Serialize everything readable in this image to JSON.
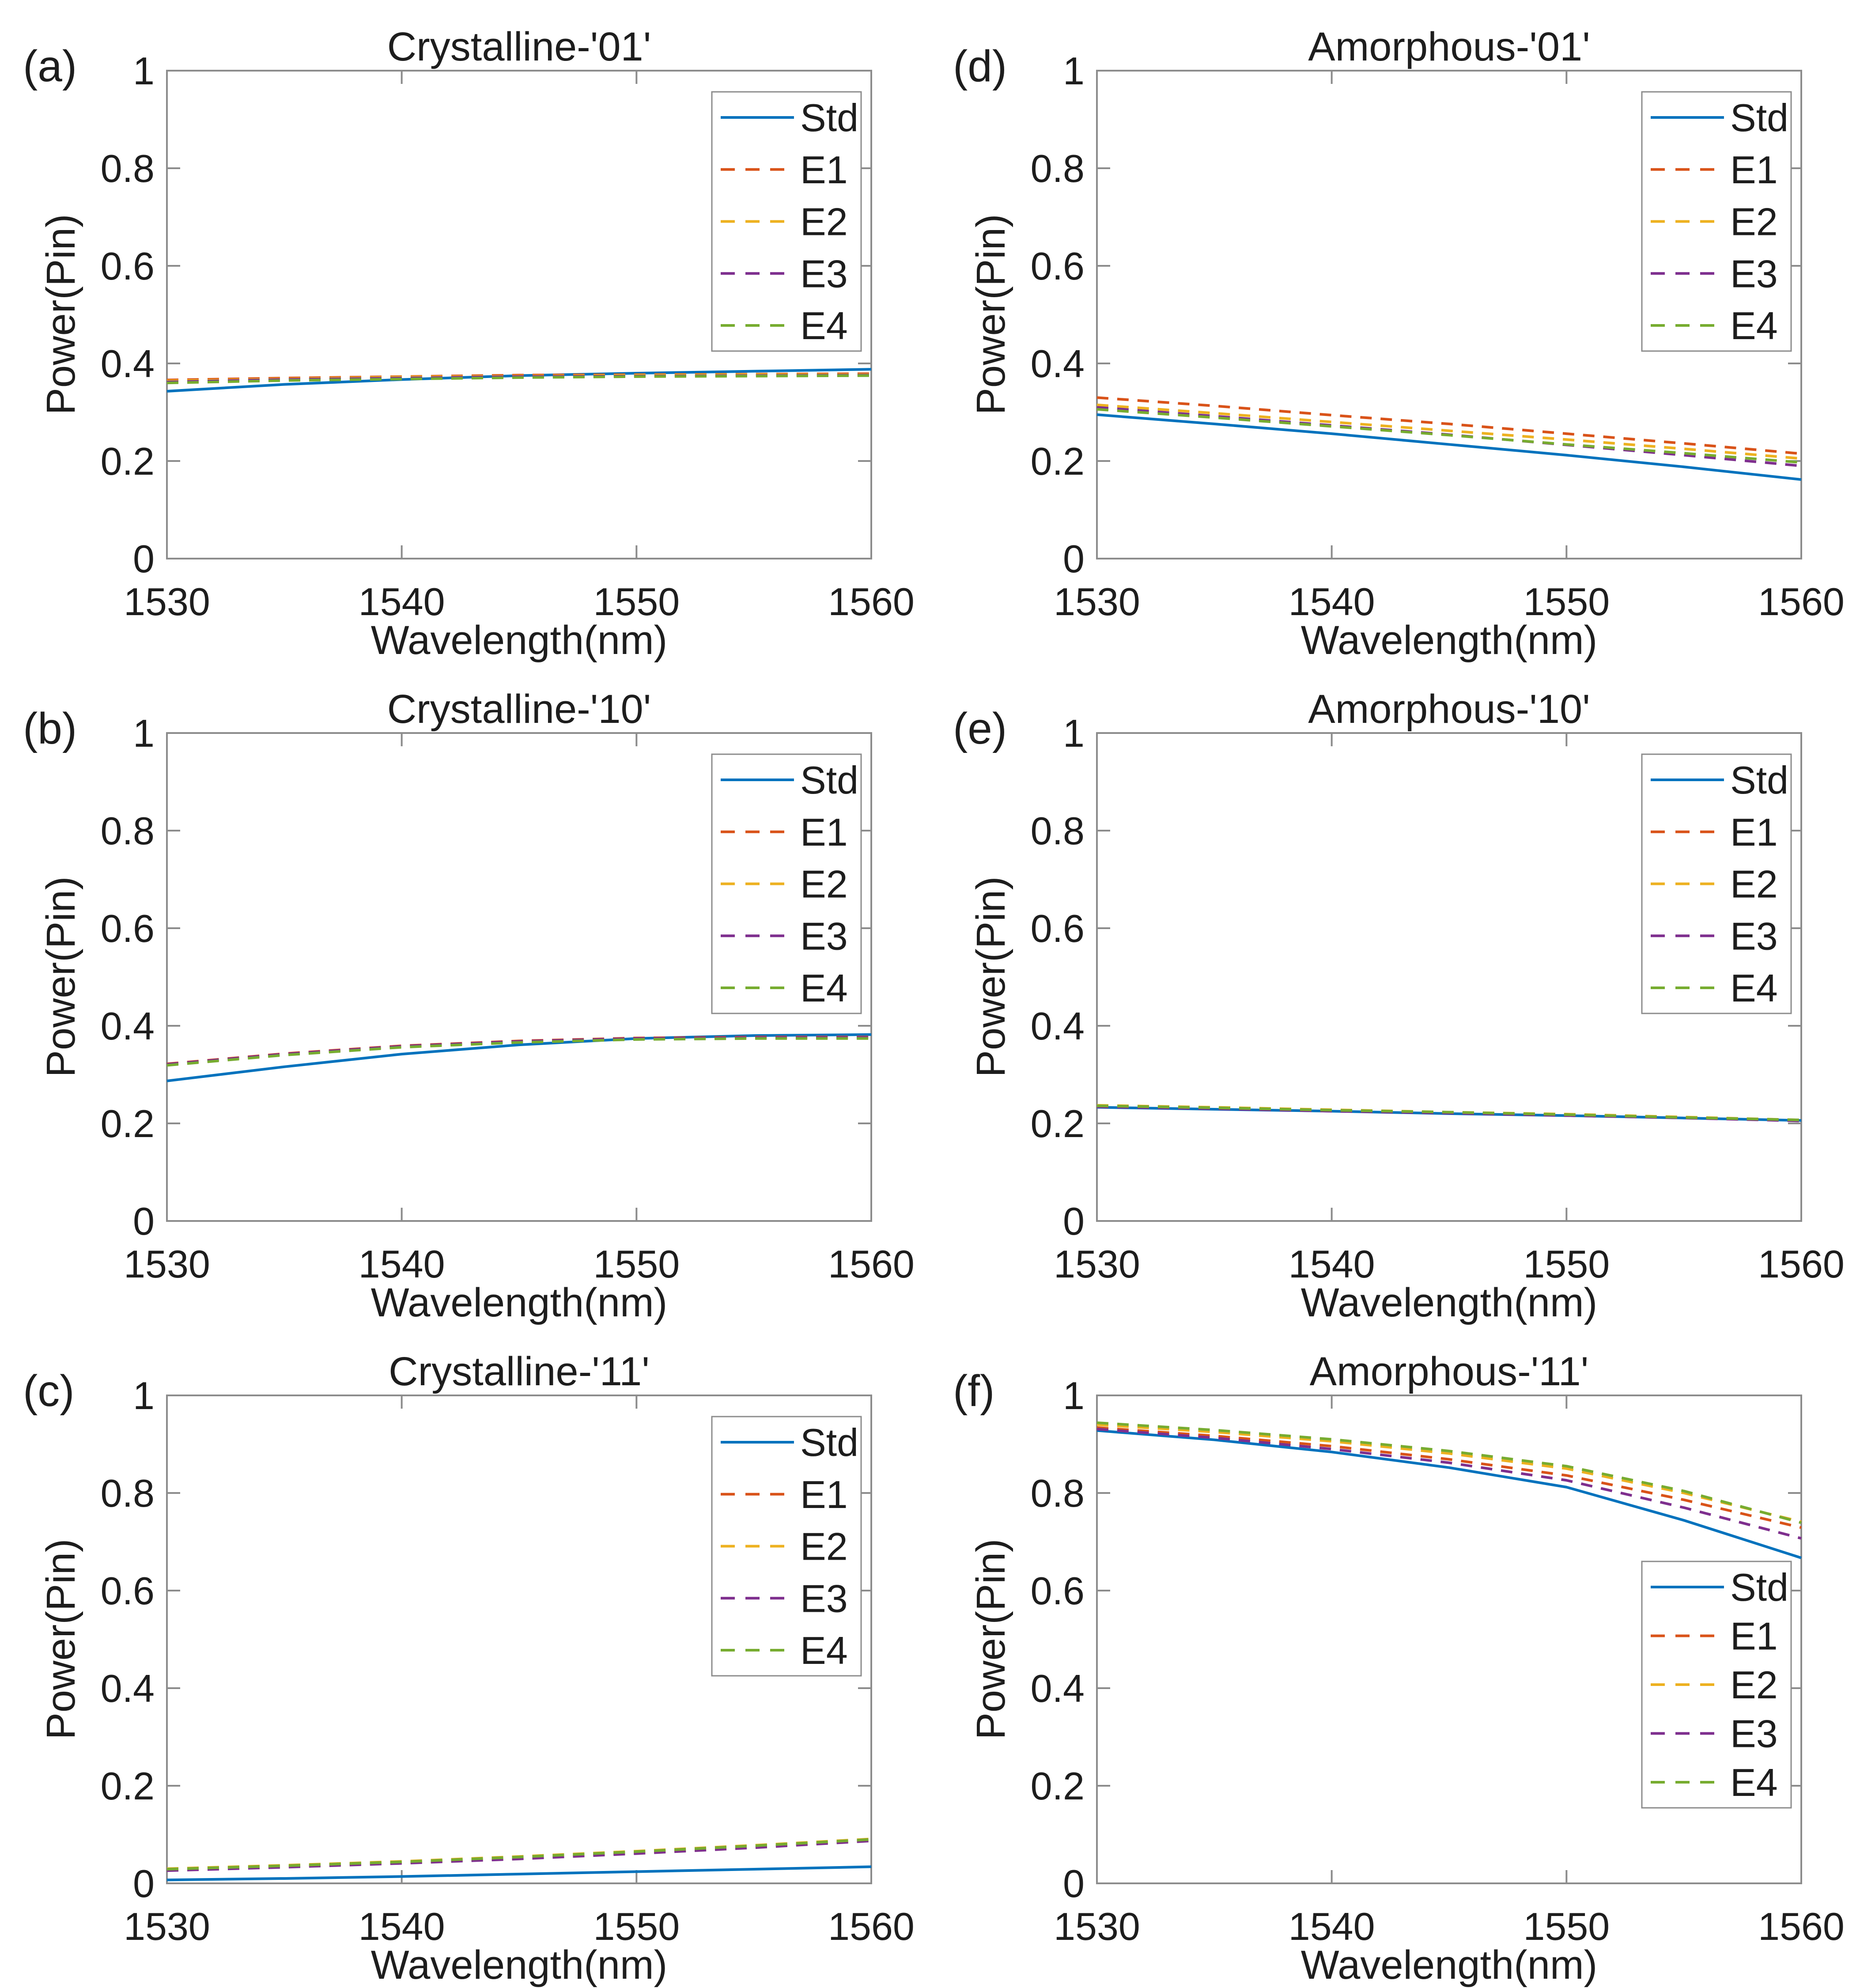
{
  "figure": {
    "background": "#ffffff",
    "axis_color": "#8c8c8c",
    "text_color": "#1d1d1d",
    "series_styles": [
      {
        "name": "Std",
        "color": "#0072BD",
        "style": "solid"
      },
      {
        "name": "E1",
        "color": "#D95319",
        "style": "dashed"
      },
      {
        "name": "E2",
        "color": "#EDB120",
        "style": "dashed"
      },
      {
        "name": "E3",
        "color": "#7E2F8E",
        "style": "dashed"
      },
      {
        "name": "E4",
        "color": "#77AC30",
        "style": "dashed"
      }
    ],
    "legend_labels": [
      "Std",
      "E1",
      "E2",
      "E3",
      "E4"
    ]
  },
  "chart_data": [
    {
      "type": "line",
      "panel": "(a)",
      "title": "Crystalline-'01'",
      "xlabel": "Wavelength(nm)",
      "ylabel": "Power(Pin)",
      "xlim": [
        1530,
        1560
      ],
      "ylim": [
        0,
        1
      ],
      "x_ticks": [
        1530,
        1540,
        1550,
        1560
      ],
      "x_tick_labels": [
        "1530",
        "1540",
        "1550",
        "1560"
      ],
      "y_ticks": [
        0,
        0.2,
        0.4,
        0.6,
        0.8,
        1
      ],
      "y_tick_labels": [
        "0",
        "0.2",
        "0.4",
        "0.6",
        "0.8",
        "1"
      ],
      "grid": false,
      "legend_position": "top-right",
      "x": [
        1530,
        1535,
        1540,
        1545,
        1550,
        1555,
        1560
      ],
      "series": [
        {
          "name": "Std",
          "values": [
            0.343,
            0.357,
            0.367,
            0.375,
            0.38,
            0.384,
            0.388
          ]
        },
        {
          "name": "E1",
          "values": [
            0.366,
            0.37,
            0.373,
            0.376,
            0.377,
            0.378,
            0.379
          ]
        },
        {
          "name": "E2",
          "values": [
            0.364,
            0.368,
            0.372,
            0.374,
            0.376,
            0.377,
            0.377
          ]
        },
        {
          "name": "E3",
          "values": [
            0.362,
            0.367,
            0.37,
            0.373,
            0.374,
            0.375,
            0.376
          ]
        },
        {
          "name": "E4",
          "values": [
            0.36,
            0.365,
            0.368,
            0.371,
            0.373,
            0.374,
            0.375
          ]
        }
      ]
    },
    {
      "type": "line",
      "panel": "(d)",
      "title": "Amorphous-'01'",
      "xlabel": "Wavelength(nm)",
      "ylabel": "Power(Pin)",
      "xlim": [
        1530,
        1560
      ],
      "ylim": [
        0,
        1
      ],
      "x_ticks": [
        1530,
        1540,
        1550,
        1560
      ],
      "x_tick_labels": [
        "1530",
        "1540",
        "1550",
        "1560"
      ],
      "y_ticks": [
        0,
        0.2,
        0.4,
        0.6,
        0.8,
        1
      ],
      "y_tick_labels": [
        "0",
        "0.2",
        "0.4",
        "0.6",
        "0.8",
        "1"
      ],
      "grid": false,
      "legend_position": "top-right",
      "x": [
        1530,
        1535,
        1540,
        1545,
        1550,
        1555,
        1560
      ],
      "series": [
        {
          "name": "Std",
          "values": [
            0.295,
            0.276,
            0.256,
            0.234,
            0.212,
            0.188,
            0.162
          ]
        },
        {
          "name": "E1",
          "values": [
            0.33,
            0.313,
            0.294,
            0.276,
            0.256,
            0.236,
            0.215
          ]
        },
        {
          "name": "E2",
          "values": [
            0.315,
            0.298,
            0.28,
            0.262,
            0.244,
            0.225,
            0.205
          ]
        },
        {
          "name": "E3",
          "values": [
            0.31,
            0.292,
            0.273,
            0.254,
            0.233,
            0.212,
            0.19
          ]
        },
        {
          "name": "E4",
          "values": [
            0.306,
            0.289,
            0.271,
            0.253,
            0.234,
            0.216,
            0.197
          ]
        }
      ]
    },
    {
      "type": "line",
      "panel": "(b)",
      "title": "Crystalline-'10'",
      "xlabel": "Wavelength(nm)",
      "ylabel": "Power(Pin)",
      "xlim": [
        1530,
        1560
      ],
      "ylim": [
        0,
        1
      ],
      "x_ticks": [
        1530,
        1540,
        1550,
        1560
      ],
      "x_tick_labels": [
        "1530",
        "1540",
        "1550",
        "1560"
      ],
      "y_ticks": [
        0,
        0.2,
        0.4,
        0.6,
        0.8,
        1
      ],
      "y_tick_labels": [
        "0",
        "0.2",
        "0.4",
        "0.6",
        "0.8",
        "1"
      ],
      "grid": false,
      "legend_position": "top-right",
      "x": [
        1530,
        1535,
        1540,
        1545,
        1550,
        1555,
        1560
      ],
      "series": [
        {
          "name": "Std",
          "values": [
            0.287,
            0.316,
            0.342,
            0.361,
            0.374,
            0.38,
            0.382
          ]
        },
        {
          "name": "E1",
          "values": [
            0.322,
            0.343,
            0.359,
            0.369,
            0.375,
            0.377,
            0.377
          ]
        },
        {
          "name": "E2",
          "values": [
            0.32,
            0.341,
            0.357,
            0.367,
            0.373,
            0.375,
            0.375
          ]
        },
        {
          "name": "E3",
          "values": [
            0.321,
            0.342,
            0.358,
            0.368,
            0.374,
            0.376,
            0.376
          ]
        },
        {
          "name": "E4",
          "values": [
            0.319,
            0.34,
            0.356,
            0.366,
            0.372,
            0.374,
            0.374
          ]
        }
      ]
    },
    {
      "type": "line",
      "panel": "(e)",
      "title": "Amorphous-'10'",
      "xlabel": "Wavelength(nm)",
      "ylabel": "Power(Pin)",
      "xlim": [
        1530,
        1560
      ],
      "ylim": [
        0,
        1
      ],
      "x_ticks": [
        1530,
        1540,
        1550,
        1560
      ],
      "x_tick_labels": [
        "1530",
        "1540",
        "1550",
        "1560"
      ],
      "y_ticks": [
        0,
        0.2,
        0.4,
        0.6,
        0.8,
        1
      ],
      "y_tick_labels": [
        "0",
        "0.2",
        "0.4",
        "0.6",
        "0.8",
        "1"
      ],
      "grid": false,
      "legend_position": "top-right",
      "x": [
        1530,
        1535,
        1540,
        1545,
        1550,
        1555,
        1560
      ],
      "series": [
        {
          "name": "Std",
          "values": [
            0.233,
            0.229,
            0.225,
            0.22,
            0.216,
            0.211,
            0.206
          ]
        },
        {
          "name": "E1",
          "values": [
            0.235,
            0.231,
            0.226,
            0.222,
            0.217,
            0.212,
            0.206
          ]
        },
        {
          "name": "E2",
          "values": [
            0.237,
            0.233,
            0.228,
            0.223,
            0.219,
            0.213,
            0.207
          ]
        },
        {
          "name": "E3",
          "values": [
            0.234,
            0.23,
            0.225,
            0.221,
            0.216,
            0.211,
            0.205
          ]
        },
        {
          "name": "E4",
          "values": [
            0.236,
            0.232,
            0.227,
            0.223,
            0.218,
            0.212,
            0.207
          ]
        }
      ]
    },
    {
      "type": "line",
      "panel": "(c)",
      "title": "Crystalline-'11'",
      "xlabel": "Wavelength(nm)",
      "ylabel": "Power(Pin)",
      "xlim": [
        1530,
        1560
      ],
      "ylim": [
        0,
        1
      ],
      "x_ticks": [
        1530,
        1540,
        1550,
        1560
      ],
      "x_tick_labels": [
        "1530",
        "1540",
        "1550",
        "1560"
      ],
      "y_ticks": [
        0,
        0.2,
        0.4,
        0.6,
        0.8,
        1
      ],
      "y_tick_labels": [
        "0",
        "0.2",
        "0.4",
        "0.6",
        "0.8",
        "1"
      ],
      "grid": false,
      "legend_position": "top-right",
      "x": [
        1530,
        1535,
        1540,
        1545,
        1550,
        1555,
        1560
      ],
      "series": [
        {
          "name": "Std",
          "values": [
            0.007,
            0.01,
            0.014,
            0.019,
            0.024,
            0.029,
            0.034
          ]
        },
        {
          "name": "E1",
          "values": [
            0.027,
            0.034,
            0.042,
            0.051,
            0.062,
            0.074,
            0.088
          ]
        },
        {
          "name": "E2",
          "values": [
            0.03,
            0.037,
            0.045,
            0.055,
            0.066,
            0.078,
            0.091
          ]
        },
        {
          "name": "E3",
          "values": [
            0.026,
            0.033,
            0.041,
            0.05,
            0.061,
            0.073,
            0.087
          ]
        },
        {
          "name": "E4",
          "values": [
            0.029,
            0.036,
            0.044,
            0.054,
            0.065,
            0.077,
            0.09
          ]
        }
      ]
    },
    {
      "type": "line",
      "panel": "(f)",
      "title": "Amorphous-'11'",
      "xlabel": "Wavelength(nm)",
      "ylabel": "Power(Pin)",
      "xlim": [
        1530,
        1560
      ],
      "ylim": [
        0,
        1
      ],
      "x_ticks": [
        1530,
        1540,
        1550,
        1560
      ],
      "x_tick_labels": [
        "1530",
        "1540",
        "1550",
        "1560"
      ],
      "y_ticks": [
        0,
        0.2,
        0.4,
        0.6,
        0.8,
        1
      ],
      "y_tick_labels": [
        "0",
        "0.2",
        "0.4",
        "0.6",
        "0.8",
        "1"
      ],
      "grid": false,
      "legend_position": "mid-right",
      "x": [
        1530,
        1535,
        1540,
        1545,
        1550,
        1555,
        1560
      ],
      "series": [
        {
          "name": "Std",
          "values": [
            0.928,
            0.909,
            0.884,
            0.852,
            0.812,
            0.744,
            0.667
          ]
        },
        {
          "name": "E1",
          "values": [
            0.934,
            0.917,
            0.896,
            0.869,
            0.836,
            0.786,
            0.729
          ]
        },
        {
          "name": "E2",
          "values": [
            0.94,
            0.925,
            0.906,
            0.881,
            0.85,
            0.8,
            0.741
          ]
        },
        {
          "name": "E3",
          "values": [
            0.931,
            0.913,
            0.89,
            0.862,
            0.826,
            0.77,
            0.707
          ]
        },
        {
          "name": "E4",
          "values": [
            0.944,
            0.929,
            0.91,
            0.886,
            0.855,
            0.804,
            0.739
          ]
        }
      ]
    }
  ]
}
